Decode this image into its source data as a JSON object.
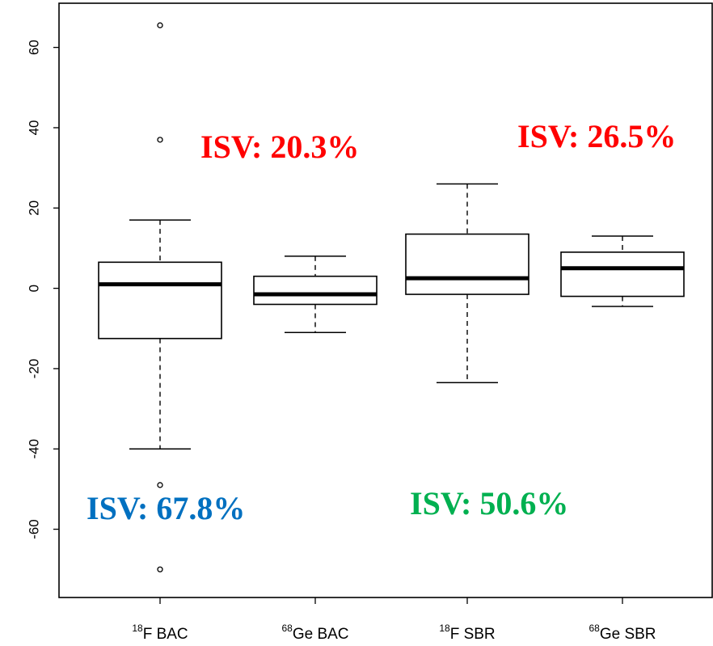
{
  "chart_data": {
    "type": "box",
    "ylim": [
      -77,
      71
    ],
    "yticks": [
      -60,
      -40,
      -20,
      0,
      20,
      40,
      60
    ],
    "grid": false,
    "categories": [
      {
        "sup": "18",
        "label": "F BAC"
      },
      {
        "sup": "68",
        "label": "Ge BAC"
      },
      {
        "sup": "18",
        "label": "F SBR"
      },
      {
        "sup": "68",
        "label": "Ge SBR"
      }
    ],
    "boxes": [
      {
        "whisker_low": -40,
        "q1": -12.5,
        "median": 1,
        "q3": 6.5,
        "whisker_high": 17,
        "outliers": [
          65.5,
          -49,
          -70
        ]
      },
      {
        "whisker_low": -11,
        "q1": -4,
        "median": -1.5,
        "q3": 3,
        "whisker_high": 8,
        "outliers": []
      },
      {
        "whisker_low": -23.5,
        "q1": -1.5,
        "median": 2.5,
        "q3": 13.5,
        "whisker_high": 26,
        "outliers": [
          37
        ]
      },
      {
        "whisker_low": -4.5,
        "q1": -2,
        "median": 5,
        "q3": 9,
        "whisker_high": 13,
        "outliers": []
      }
    ],
    "annotations": [
      {
        "text": "ISV: 20.3%",
        "color": "#ff0000"
      },
      {
        "text": "ISV: 26.5%",
        "color": "#ff0000"
      },
      {
        "text": "ISV: 67.8%",
        "color": "#0070c0"
      },
      {
        "text": "ISV: 50.6%",
        "color": "#00b050"
      }
    ]
  }
}
